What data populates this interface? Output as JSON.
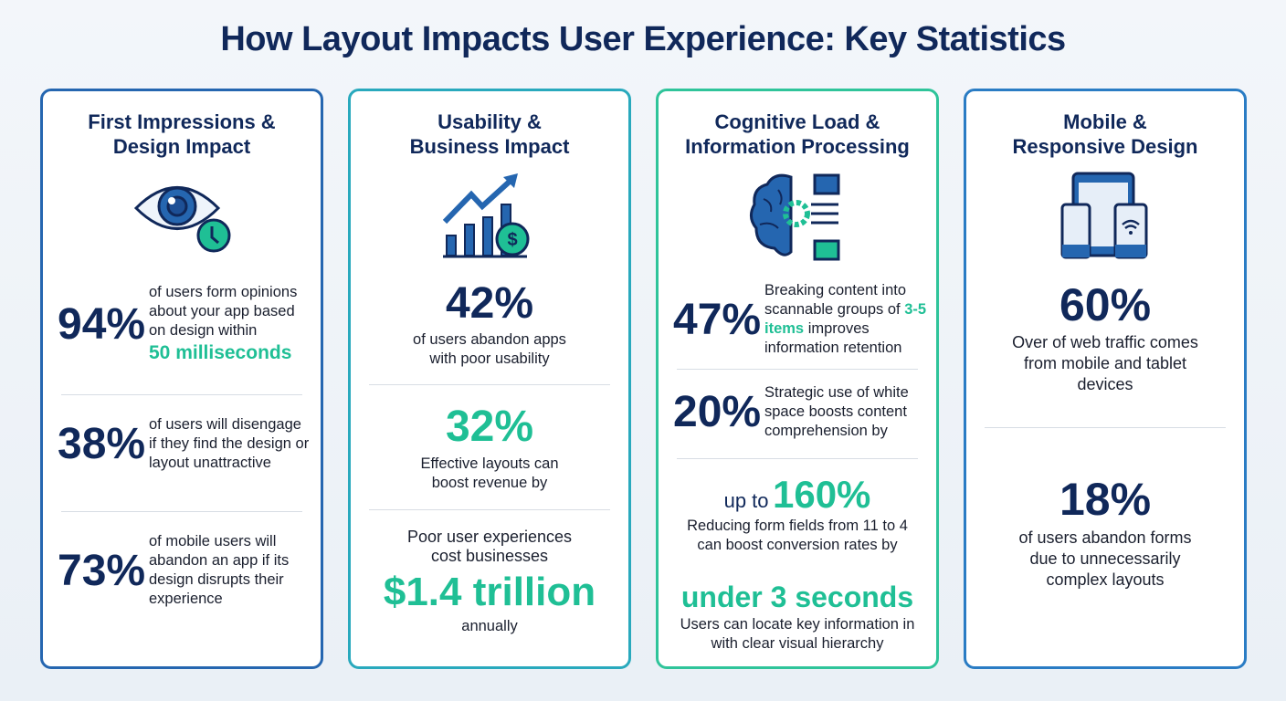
{
  "title": "How Layout Impacts User Experience: Key Statistics",
  "colors": {
    "navy": "#10285a",
    "teal": "#1fbf95",
    "blue": "#2566b0"
  },
  "cards": [
    {
      "title_1": "First Impressions &",
      "title_2": "Design Impact",
      "icon": "eye-clock-icon",
      "stats": [
        {
          "value": "94%",
          "text": "of users form opinions about your app based on design within",
          "highlight": "50 milliseconds"
        },
        {
          "value": "38%",
          "text": "of users will disengage if they find the design or layout unattractive"
        },
        {
          "value": "73%",
          "text": "of mobile users will abandon an app if its design disrupts their experience"
        }
      ]
    },
    {
      "title_1": "Usability &",
      "title_2": "Business Impact",
      "icon": "chart-growth-dollar-icon",
      "stats": [
        {
          "value": "42%",
          "text": "of users abandon apps with poor usability"
        },
        {
          "value": "32%",
          "text": "Effective layouts can boost revenue by"
        },
        {
          "pre": "Poor user experiences cost businesses",
          "value": "$1.4 trillion",
          "text": "annually"
        }
      ]
    },
    {
      "title_1": "Cognitive Load &",
      "title_2": "Information Processing",
      "icon": "brain-gear-list-icon",
      "stats": [
        {
          "value": "47%",
          "text_a": "Breaking content into scannable groups of",
          "highlight": "3-5 items",
          "text_b": "improves information retention"
        },
        {
          "value": "20%",
          "text": "Strategic use of white space boosts content comprehension by"
        },
        {
          "prefix": "up to",
          "value": "160%",
          "text": "Reducing form fields from 11 to 4 can boost conversion rates by"
        },
        {
          "value": "under 3 seconds",
          "text": "Users can locate key information in with clear visual hierarchy"
        }
      ]
    },
    {
      "title_1": "Mobile &",
      "title_2": "Responsive Design",
      "icon": "devices-icon",
      "stats": [
        {
          "value": "60%",
          "text": "Over of web traffic comes from mobile and tablet devices"
        },
        {
          "value": "18%",
          "text": "of users abandon forms due to unnecessarily complex layouts"
        }
      ]
    }
  ]
}
